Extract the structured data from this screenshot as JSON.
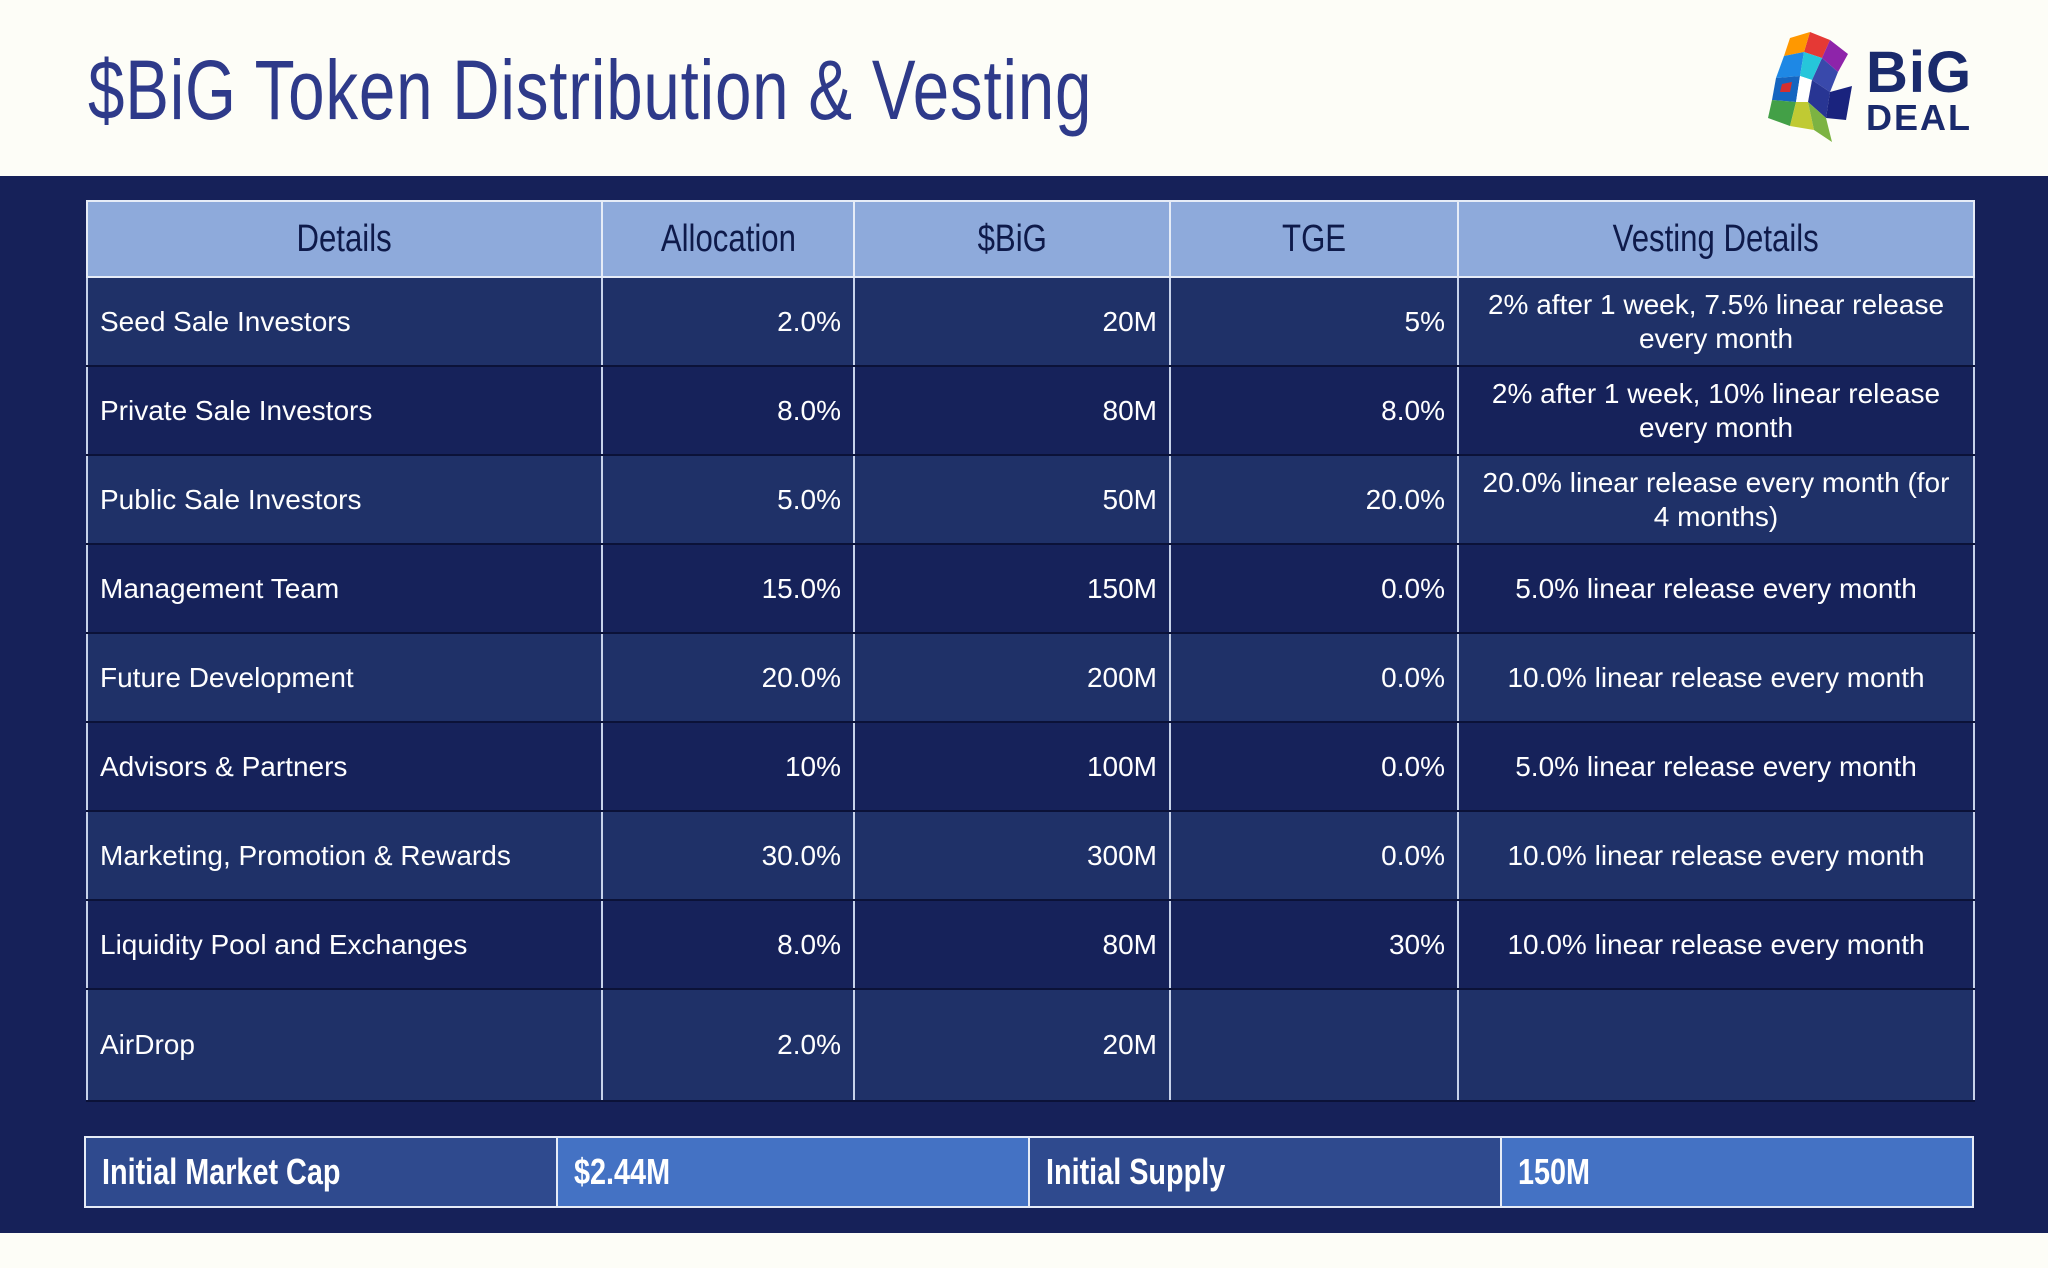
{
  "page": {
    "title": "$BiG Token Distribution & Vesting",
    "logo_line1": "BiG",
    "logo_line2": "DEAL"
  },
  "table": {
    "headers": [
      "Details",
      "Allocation",
      "$BiG",
      "TGE",
      "Vesting Details"
    ],
    "rows": [
      {
        "details": "Seed Sale Investors",
        "allocation": "2.0%",
        "big": "20M",
        "tge": "5%",
        "vesting": "2% after 1 week, 7.5% linear release every month"
      },
      {
        "details": "Private Sale Investors",
        "allocation": "8.0%",
        "big": "80M",
        "tge": "8.0%",
        "vesting": "2% after 1 week, 10% linear release every month"
      },
      {
        "details": "Public Sale Investors",
        "allocation": "5.0%",
        "big": "50M",
        "tge": "20.0%",
        "vesting": "20.0% linear release every month (for 4 months)"
      },
      {
        "details": "Management Team",
        "allocation": "15.0%",
        "big": "150M",
        "tge": "0.0%",
        "vesting": "5.0% linear release every month"
      },
      {
        "details": "Future Development",
        "allocation": "20.0%",
        "big": "200M",
        "tge": "0.0%",
        "vesting": "10.0% linear release every month"
      },
      {
        "details": "Advisors & Partners",
        "allocation": "10%",
        "big": "100M",
        "tge": "0.0%",
        "vesting": "5.0% linear release every month"
      },
      {
        "details": "Marketing, Promotion & Rewards",
        "allocation": "30.0%",
        "big": "300M",
        "tge": "0.0%",
        "vesting": "10.0% linear release every month"
      },
      {
        "details": "Liquidity Pool and Exchanges",
        "allocation": "8.0%",
        "big": "80M",
        "tge": "30%",
        "vesting": "10.0% linear release every month"
      },
      {
        "details": "AirDrop",
        "allocation": "2.0%",
        "big": "20M",
        "tge": "",
        "vesting": ""
      }
    ]
  },
  "footer": {
    "market_cap_label": "Initial Market Cap",
    "market_cap_value": "$2.44M",
    "supply_label": "Initial Supply",
    "supply_value": "150M"
  }
}
